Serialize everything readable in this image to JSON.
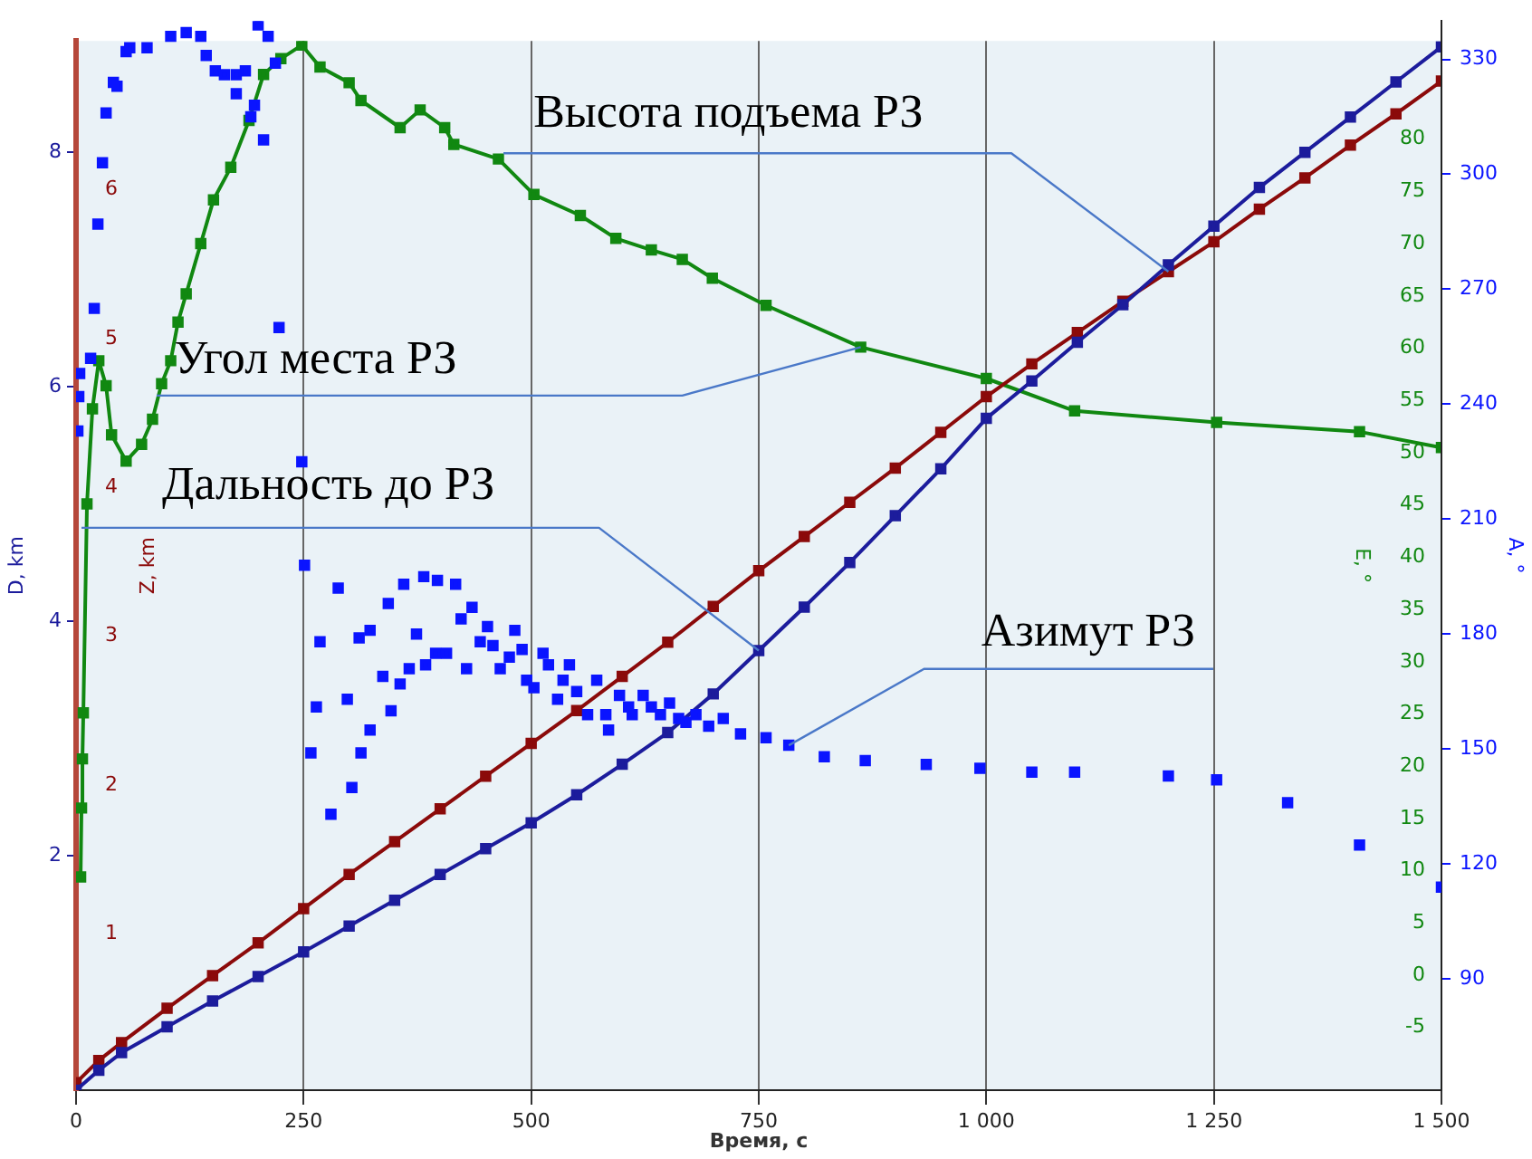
{
  "chart_data": [
    {
      "type": "line",
      "xlabel": "Время, с",
      "ylabel": "D, km",
      "y2label": "Z, km",
      "y3label": "E, °",
      "xlim": [
        0,
        1500
      ],
      "xticks": [
        0,
        250,
        500,
        750,
        {
          "value": 1000,
          "label": "1 000"
        },
        {
          "value": 1250,
          "label": "1 250"
        },
        {
          "value": 1500,
          "label": "1 500"
        }
      ],
      "ylim": [
        0,
        8.95
      ],
      "yticks": [
        2,
        4,
        6,
        8
      ],
      "y2lim": [
        -0.05,
        7
      ],
      "y2ticks": [
        1,
        2,
        3,
        4,
        5,
        6
      ],
      "y3lim": [
        -11,
        89.4
      ],
      "y3ticks": [
        -5,
        0,
        5,
        10,
        15,
        20,
        25,
        30,
        35,
        40,
        45,
        50,
        55,
        60,
        65,
        70,
        75,
        80
      ],
      "grid": "x",
      "marker": "square",
      "series": [
        {
          "name": "Дальность до РЗ",
          "color": "#1c1c9c",
          "x": [
            0,
            25,
            50,
            100,
            150,
            200,
            250,
            300,
            350,
            400,
            450,
            500,
            550,
            600,
            650,
            700,
            750,
            800,
            850,
            900,
            950,
            1000,
            1050,
            1100,
            1150,
            1200,
            1250,
            1300,
            1350,
            1400,
            1450,
            1500
          ],
          "values": [
            0,
            0.17,
            0.32,
            0.54,
            0.76,
            0.97,
            1.18,
            1.4,
            1.62,
            1.84,
            2.06,
            2.28,
            2.52,
            2.78,
            3.05,
            3.38,
            3.75,
            4.12,
            4.5,
            4.9,
            5.3,
            5.73,
            6.05,
            6.38,
            6.7,
            7.04,
            7.37,
            7.7,
            8.0,
            8.3,
            8.6,
            8.9
          ]
        },
        {
          "name": "Высота подъема РЗ",
          "color": "#8b0a0a",
          "axis": "y2",
          "x": [
            0,
            25,
            50,
            100,
            150,
            200,
            250,
            300,
            350,
            400,
            450,
            500,
            550,
            600,
            650,
            700,
            750,
            800,
            850,
            900,
            950,
            1000,
            1050,
            1100,
            1150,
            1200,
            1250,
            1300,
            1350,
            1400,
            1450,
            1500
          ],
          "values": [
            0,
            0.15,
            0.27,
            0.5,
            0.72,
            0.94,
            1.17,
            1.4,
            1.62,
            1.84,
            2.06,
            2.28,
            2.5,
            2.73,
            2.96,
            3.2,
            3.44,
            3.67,
            3.9,
            4.13,
            4.37,
            4.61,
            4.83,
            5.04,
            5.25,
            5.45,
            5.65,
            5.87,
            6.08,
            6.3,
            6.51,
            6.73
          ]
        },
        {
          "name": "Угол места РЗ",
          "color": "#118811",
          "axis": "y3",
          "x": [
            5,
            6,
            7,
            8,
            12,
            18,
            25,
            33,
            39,
            55,
            72,
            84,
            94,
            104,
            112,
            121,
            137,
            151,
            170,
            190,
            206,
            225,
            248,
            268,
            300,
            313,
            356,
            378,
            405,
            415,
            464,
            503,
            554,
            593,
            632,
            666,
            699,
            758,
            862,
            1000,
            1097,
            1253,
            1410,
            1500
          ],
          "values": [
            9.4,
            16,
            20.7,
            25.1,
            45.1,
            54.2,
            58.8,
            56.4,
            51.7,
            49.2,
            50.8,
            53.2,
            56.6,
            58.8,
            62.5,
            65.2,
            70,
            74.2,
            77.3,
            81.8,
            86.2,
            87.7,
            89,
            86.9,
            85.4,
            83.7,
            81.1,
            82.8,
            81.1,
            79.5,
            78.1,
            74.7,
            72.7,
            70.5,
            69.4,
            68.5,
            66.7,
            64.1,
            60.1,
            57.1,
            54,
            52.9,
            52,
            50.5
          ]
        }
      ]
    },
    {
      "type": "scatter",
      "ylabel": "A, °",
      "tick_labels": "y",
      "marker": "square",
      "xlim": [
        0,
        1500
      ],
      "xticks": [
        0,
        250,
        500,
        750,
        1000,
        1250,
        1500
      ],
      "ylim": [
        61,
        340
      ],
      "yticks": [
        90,
        120,
        150,
        180,
        210,
        240,
        270,
        300,
        330
      ],
      "series": [
        {
          "name": "Азимут РЗ",
          "color": "#0a14ff",
          "x": [
            2,
            3,
            4,
            16,
            20,
            24,
            29,
            33,
            41,
            45,
            55,
            59,
            78,
            104,
            121,
            137,
            143,
            153,
            163,
            176,
            186,
            176,
            196,
            192,
            206,
            200,
            211,
            219,
            223,
            248,
            251,
            258,
            264,
            268,
            280,
            288,
            298,
            303,
            313,
            323,
            311,
            323,
            337,
            343,
            346,
            356,
            360,
            366,
            374,
            382,
            384,
            397,
            395,
            407,
            417,
            423,
            429,
            435,
            444,
            452,
            458,
            466,
            476,
            482,
            490,
            495,
            503,
            513,
            519,
            529,
            535,
            542,
            550,
            562,
            572,
            582,
            585,
            597,
            607,
            611,
            623,
            632,
            642,
            652,
            662,
            670,
            681,
            695,
            711,
            730,
            758,
            783,
            822,
            867,
            934,
            993,
            1050,
            1097,
            1200,
            1253,
            1331,
            1410,
            1500
          ],
          "values": [
            233,
            242,
            248,
            252,
            265,
            287,
            303,
            316,
            324,
            323,
            332,
            333,
            333,
            336,
            337,
            336,
            331,
            327,
            326,
            326,
            327,
            321,
            318,
            315,
            309,
            339,
            336,
            329,
            260,
            225,
            198,
            149,
            161,
            178,
            133,
            192,
            163,
            140,
            149,
            155,
            179,
            181,
            169,
            188,
            160,
            167,
            193,
            171,
            180,
            195,
            172,
            194,
            175,
            175,
            193,
            184,
            171,
            187,
            178,
            182,
            177,
            171,
            174,
            181,
            176,
            168,
            166,
            175,
            172,
            163,
            168,
            172,
            165,
            159,
            168,
            159,
            155,
            164,
            161,
            159,
            164,
            161,
            159,
            162,
            158,
            157,
            159,
            156,
            158,
            154,
            153,
            151,
            148,
            147,
            146,
            145,
            144,
            144,
            143,
            142,
            136,
            125,
            114
          ]
        }
      ]
    }
  ]
}
